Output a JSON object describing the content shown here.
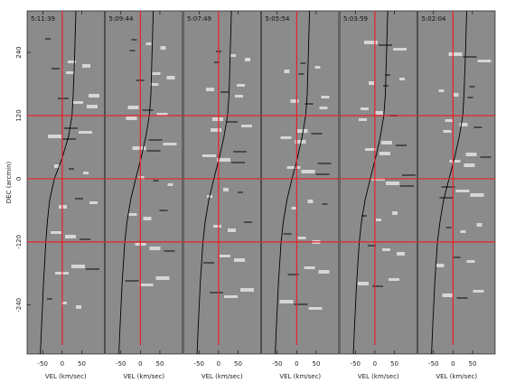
{
  "chart_data": [
    {
      "type": "pv-diagram",
      "title": "5:11:39",
      "ylabel": "DEC (arcmin)",
      "xlabel": "VEL (km/sec)",
      "xlim": [
        -90,
        108
      ],
      "xticks": [
        -50,
        0,
        50
      ],
      "ylim": [
        -333,
        319
      ],
      "yticks": [
        240,
        120,
        0,
        -120,
        -240
      ],
      "hlines": [
        120,
        0,
        -120
      ],
      "vlines": [
        0
      ],
      "line_color": "#e8202a",
      "curve_color": "#000000",
      "curve": {
        "dec": [
          319,
          240,
          160,
          120,
          80,
          40,
          0,
          -40,
          -80,
          -120,
          -200,
          -280,
          -333
        ],
        "vel": [
          35,
          32,
          28,
          25,
          16,
          0,
          -20,
          -32,
          -38,
          -42,
          -48,
          -53,
          -56
        ]
      }
    },
    {
      "type": "pv-diagram",
      "title": "5:09:44",
      "xlabel": "VEL (km/sec)",
      "xlim": [
        -90,
        108
      ],
      "xticks": [
        -50,
        0,
        50
      ],
      "ylim": [
        -333,
        319
      ],
      "hlines": [
        120,
        0,
        -120
      ],
      "vlines": [
        0
      ],
      "line_color": "#e8202a",
      "curve_color": "#000000",
      "curve": {
        "dec": [
          319,
          240,
          160,
          120,
          80,
          40,
          0,
          -40,
          -80,
          -120,
          -200,
          -280,
          -333
        ],
        "vel": [
          33,
          30,
          27,
          23,
          14,
          2,
          -12,
          -25,
          -34,
          -40,
          -47,
          -52,
          -55
        ]
      }
    },
    {
      "type": "pv-diagram",
      "title": "5:07:49",
      "xlabel": "VEL (km/sec)",
      "xlim": [
        -90,
        108
      ],
      "xticks": [
        -50,
        0,
        50
      ],
      "ylim": [
        -333,
        319
      ],
      "hlines": [
        120,
        0,
        -120
      ],
      "vlines": [
        0
      ],
      "line_color": "#e8202a",
      "curve_color": "#000000",
      "curve": {
        "dec": [
          319,
          240,
          160,
          120,
          80,
          40,
          0,
          -40,
          -80,
          -120,
          -200,
          -280,
          -333
        ],
        "vel": [
          33,
          30,
          27,
          23,
          14,
          2,
          -12,
          -25,
          -34,
          -40,
          -47,
          -52,
          -55
        ]
      }
    },
    {
      "type": "pv-diagram",
      "title": "5:05:54",
      "xlabel": "VEL (km/sec)",
      "xlim": [
        -90,
        108
      ],
      "xticks": [
        -50,
        0,
        50
      ],
      "ylim": [
        -333,
        319
      ],
      "hlines": [
        120,
        0,
        -120
      ],
      "vlines": [
        0
      ],
      "line_color": "#e8202a",
      "curve_color": "#000000",
      "curve": {
        "dec": [
          319,
          240,
          160,
          120,
          80,
          40,
          0,
          -40,
          -80,
          -120,
          -200,
          -280,
          -333
        ],
        "vel": [
          33,
          30,
          27,
          23,
          14,
          2,
          -12,
          -25,
          -34,
          -40,
          -47,
          -52,
          -55
        ]
      }
    },
    {
      "type": "pv-diagram",
      "title": "5:03:59",
      "xlabel": "VEL (km/sec)",
      "xlim": [
        -90,
        108
      ],
      "xticks": [
        -50,
        0,
        50
      ],
      "ylim": [
        -333,
        319
      ],
      "hlines": [
        120,
        0,
        -120
      ],
      "vlines": [
        0
      ],
      "line_color": "#e8202a",
      "curve_color": "#000000",
      "curve": {
        "dec": [
          319,
          240,
          160,
          120,
          80,
          40,
          0,
          -40,
          -80,
          -120,
          -200,
          -280,
          -333
        ],
        "vel": [
          33,
          30,
          27,
          23,
          14,
          2,
          -12,
          -25,
          -34,
          -40,
          -47,
          -52,
          -55
        ]
      }
    },
    {
      "type": "pv-diagram",
      "title": "5:02:04",
      "xlabel": "VEL (km/sec)",
      "xlim": [
        -90,
        108
      ],
      "xticks": [
        -50,
        0,
        50
      ],
      "ylim": [
        -333,
        319
      ],
      "hlines": [
        120,
        0,
        -120
      ],
      "vlines": [
        0
      ],
      "line_color": "#e8202a",
      "curve_color": "#000000",
      "curve": {
        "dec": [
          319,
          240,
          160,
          120,
          80,
          40,
          0,
          -40,
          -80,
          -120,
          -200,
          -280,
          -333
        ],
        "vel": [
          35,
          32,
          28,
          25,
          16,
          4,
          -10,
          -24,
          -33,
          -40,
          -47,
          -52,
          -55
        ]
      }
    }
  ]
}
